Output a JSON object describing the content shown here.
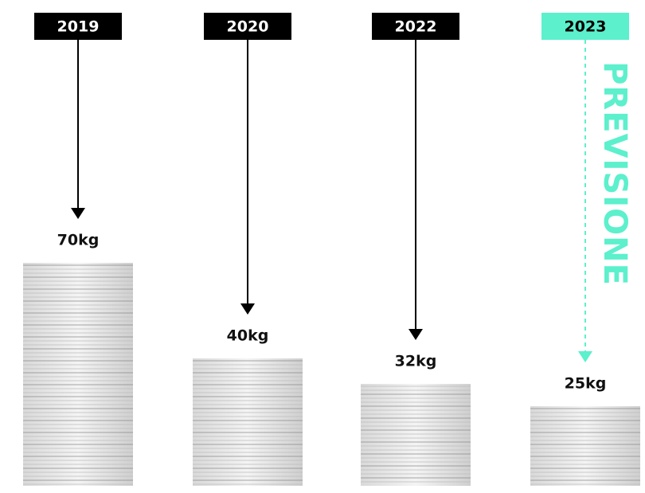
{
  "chart_data": {
    "type": "bar",
    "categories": [
      "2019",
      "2020",
      "2022",
      "2023"
    ],
    "values": [
      70,
      40,
      32,
      25
    ],
    "value_labels": [
      "70kg",
      "40kg",
      "32kg",
      "25kg"
    ],
    "colors": [
      "#000000",
      "#000000",
      "#000000",
      "#5cf0cc"
    ],
    "annotation": "PREVISIONE"
  }
}
